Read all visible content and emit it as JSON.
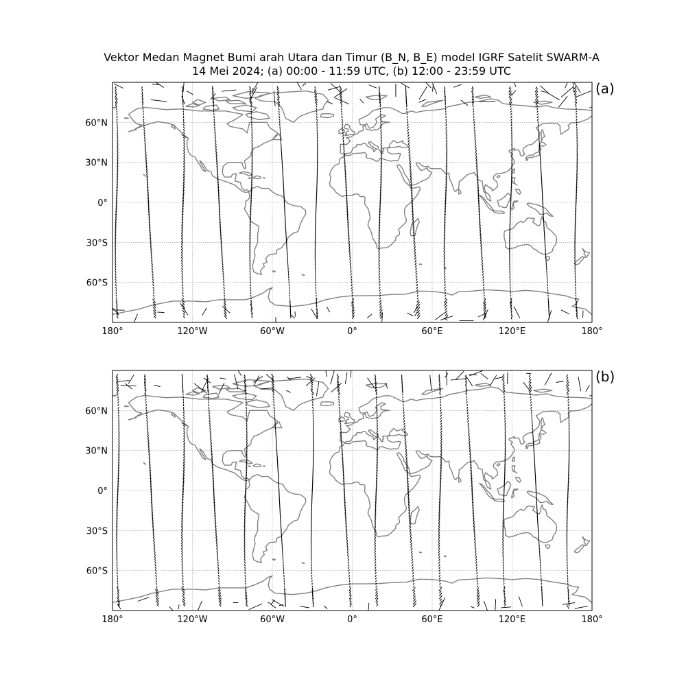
{
  "figure": {
    "title_line1": "Vektor Medan Magnet Bumi arah Utara dan Timur (B_N, B_E) model IGRF Satelit SWARM-A",
    "title_line2": "14 Mei 2024; (a) 00:00 - 11:59 UTC, (b) 12:00 - 23:59 UTC"
  },
  "map": {
    "projection": "equirectangular",
    "lon_range": [
      -180,
      180
    ],
    "lat_range": [
      -90,
      90
    ],
    "gridlines": true,
    "coastline_color": "#808080",
    "grid_color": "#9a9a9a",
    "vector_color": "#000000",
    "lon_ticks": [
      {
        "value": -180,
        "label": "180°"
      },
      {
        "value": -120,
        "label": "120°W"
      },
      {
        "value": -60,
        "label": "60°W"
      },
      {
        "value": 0,
        "label": "0°"
      },
      {
        "value": 60,
        "label": "60°E"
      },
      {
        "value": 120,
        "label": "120°E"
      },
      {
        "value": 180,
        "label": "180°"
      }
    ],
    "lat_ticks": [
      {
        "value": 60,
        "label": "60°N"
      },
      {
        "value": 30,
        "label": "30°N"
      },
      {
        "value": 0,
        "label": "0°"
      },
      {
        "value": -30,
        "label": "30°S"
      },
      {
        "value": -60,
        "label": "60°S"
      }
    ]
  },
  "panels": [
    {
      "label": "(a)",
      "track_lons": [
        -177,
        -153,
        -127,
        -100,
        -76,
        -51,
        -27,
        -4,
        21,
        45,
        70,
        95,
        119,
        143,
        168
      ]
    },
    {
      "label": "(b)",
      "track_lons": [
        -176,
        -151,
        -127,
        -104,
        -80,
        -55,
        -30,
        -6,
        18,
        42,
        66,
        90,
        114,
        138,
        162
      ]
    }
  ]
}
